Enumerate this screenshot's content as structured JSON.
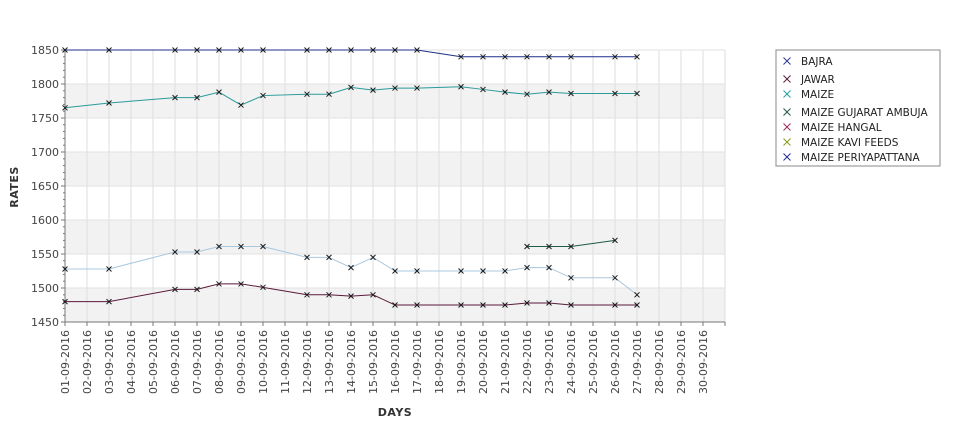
{
  "chart_data": {
    "type": "line",
    "xlabel": "DAYS",
    "ylabel": "RATES",
    "ylim": [
      1450,
      1850
    ],
    "yticks": [
      1450,
      1500,
      1550,
      1600,
      1650,
      1700,
      1750,
      1800,
      1850
    ],
    "x_ticks": [
      "01-09-2016",
      "02-09-2016",
      "03-09-2016",
      "04-09-2016",
      "05-09-2016",
      "06-09-2016",
      "07-09-2016",
      "08-09-2016",
      "09-09-2016",
      "10-09-2016",
      "11-09-2016",
      "12-09-2016",
      "13-09-2016",
      "14-09-2016",
      "15-09-2016",
      "16-09-2016",
      "17-09-2016",
      "18-09-2016",
      "19-09-2016",
      "20-09-2016",
      "21-09-2016",
      "22-09-2016",
      "23-09-2016",
      "24-09-2016",
      "25-09-2016",
      "26-09-2016",
      "27-09-2016",
      "28-09-2016",
      "29-09-2016",
      "30-09-2016"
    ],
    "grid": true,
    "legend_position": "right",
    "series": [
      {
        "name": "BAJRA",
        "color": "#2a3a8c",
        "points": []
      },
      {
        "name": "JAWAR",
        "color": "#5a1a3a",
        "points": [
          [
            "01-09-2016",
            1480
          ],
          [
            "03-09-2016",
            1480
          ],
          [
            "06-09-2016",
            1498
          ],
          [
            "07-09-2016",
            1498
          ],
          [
            "08-09-2016",
            1506
          ],
          [
            "09-09-2016",
            1506
          ],
          [
            "10-09-2016",
            1501
          ],
          [
            "12-09-2016",
            1490
          ],
          [
            "13-09-2016",
            1490
          ],
          [
            "14-09-2016",
            1488
          ],
          [
            "15-09-2016",
            1490
          ],
          [
            "16-09-2016",
            1475
          ],
          [
            "17-09-2016",
            1475
          ],
          [
            "19-09-2016",
            1475
          ],
          [
            "20-09-2016",
            1475
          ],
          [
            "21-09-2016",
            1475
          ],
          [
            "22-09-2016",
            1478
          ],
          [
            "23-09-2016",
            1478
          ],
          [
            "24-09-2016",
            1475
          ],
          [
            "26-09-2016",
            1475
          ],
          [
            "27-09-2016",
            1475
          ]
        ]
      },
      {
        "name": "MAIZE",
        "color": "#2a9a9a",
        "points": [
          [
            "01-09-2016",
            1765
          ],
          [
            "03-09-2016",
            1772
          ],
          [
            "06-09-2016",
            1780
          ],
          [
            "07-09-2016",
            1780
          ],
          [
            "08-09-2016",
            1788
          ],
          [
            "09-09-2016",
            1769
          ],
          [
            "10-09-2016",
            1783
          ],
          [
            "12-09-2016",
            1785
          ],
          [
            "13-09-2016",
            1785
          ],
          [
            "14-09-2016",
            1795
          ],
          [
            "15-09-2016",
            1791
          ],
          [
            "16-09-2016",
            1794
          ],
          [
            "17-09-2016",
            1794
          ],
          [
            "19-09-2016",
            1796
          ],
          [
            "20-09-2016",
            1792
          ],
          [
            "21-09-2016",
            1788
          ],
          [
            "22-09-2016",
            1785
          ],
          [
            "23-09-2016",
            1788
          ],
          [
            "24-09-2016",
            1786
          ],
          [
            "26-09-2016",
            1786
          ],
          [
            "27-09-2016",
            1786
          ]
        ]
      },
      {
        "name": "MAIZE GUJARAT AMBUJA",
        "color": "#1f5a4a",
        "points": [
          [
            "22-09-2016",
            1561
          ],
          [
            "23-09-2016",
            1561
          ],
          [
            "24-09-2016",
            1561
          ],
          [
            "26-09-2016",
            1570
          ]
        ]
      },
      {
        "name": "MAIZE HANGAL",
        "color": "#9a2a5a",
        "points": []
      },
      {
        "name": "MAIZE KAVI FEEDS",
        "color": "#8a9a1a",
        "points": []
      },
      {
        "name": "MAIZE PERIYAPATTANA",
        "color": "#1f2f8c",
        "points": [
          [
            "01-09-2016",
            1850
          ],
          [
            "03-09-2016",
            1850
          ],
          [
            "06-09-2016",
            1850
          ],
          [
            "07-09-2016",
            1850
          ],
          [
            "08-09-2016",
            1850
          ],
          [
            "09-09-2016",
            1850
          ],
          [
            "10-09-2016",
            1850
          ],
          [
            "12-09-2016",
            1850
          ],
          [
            "13-09-2016",
            1850
          ],
          [
            "14-09-2016",
            1850
          ],
          [
            "15-09-2016",
            1850
          ],
          [
            "16-09-2016",
            1850
          ],
          [
            "17-09-2016",
            1850
          ],
          [
            "19-09-2016",
            1840
          ],
          [
            "20-09-2016",
            1840
          ],
          [
            "21-09-2016",
            1840
          ],
          [
            "22-09-2016",
            1840
          ],
          [
            "23-09-2016",
            1840
          ],
          [
            "24-09-2016",
            1840
          ],
          [
            "26-09-2016",
            1840
          ],
          [
            "27-09-2016",
            1840
          ]
        ]
      },
      {
        "name": "",
        "color": "#a8c8e0",
        "show_in_legend": false,
        "points": [
          [
            "01-09-2016",
            1528
          ],
          [
            "03-09-2016",
            1528
          ],
          [
            "06-09-2016",
            1553
          ],
          [
            "07-09-2016",
            1553
          ],
          [
            "08-09-2016",
            1561
          ],
          [
            "09-09-2016",
            1561
          ],
          [
            "10-09-2016",
            1561
          ],
          [
            "12-09-2016",
            1545
          ],
          [
            "13-09-2016",
            1545
          ],
          [
            "14-09-2016",
            1530
          ],
          [
            "15-09-2016",
            1545
          ],
          [
            "16-09-2016",
            1525
          ],
          [
            "17-09-2016",
            1525
          ],
          [
            "19-09-2016",
            1525
          ],
          [
            "20-09-2016",
            1525
          ],
          [
            "21-09-2016",
            1525
          ],
          [
            "22-09-2016",
            1530
          ],
          [
            "23-09-2016",
            1530
          ],
          [
            "24-09-2016",
            1515
          ],
          [
            "26-09-2016",
            1515
          ],
          [
            "27-09-2016",
            1490
          ]
        ]
      }
    ]
  }
}
